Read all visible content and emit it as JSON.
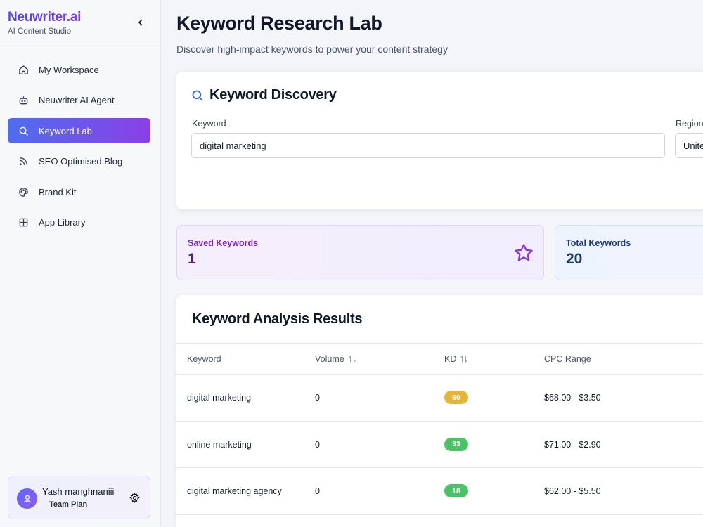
{
  "app": {
    "brand_name": "Neuwriter.ai",
    "brand_subtitle": "AI Content Studio"
  },
  "sidebar": {
    "items": [
      {
        "label": "My Workspace",
        "icon": "home-icon",
        "active": false
      },
      {
        "label": "Neuwriter AI Agent",
        "icon": "bot-icon",
        "active": false
      },
      {
        "label": "Keyword Lab",
        "icon": "search-icon",
        "active": true
      },
      {
        "label": "SEO Optimised Blog",
        "icon": "rss-icon",
        "active": false
      },
      {
        "label": "Brand Kit",
        "icon": "palette-icon",
        "active": false
      },
      {
        "label": "App Library",
        "icon": "grid-icon",
        "active": false
      }
    ],
    "user": {
      "name": "Yash manghnaniii",
      "plan": "Team Plan"
    }
  },
  "page": {
    "title": "Keyword Research Lab",
    "subtitle": "Discover high-impact keywords to power your content strategy"
  },
  "discovery": {
    "title": "Keyword Discovery",
    "keyword_label": "Keyword",
    "keyword_value": "digital marketing",
    "region_label": "Region",
    "region_value": "Unite"
  },
  "stats": {
    "saved_label": "Saved Keywords",
    "saved_value": "1",
    "total_label": "Total Keywords",
    "total_value": "20"
  },
  "results": {
    "title": "Keyword Analysis Results",
    "columns": [
      "Keyword",
      "Volume",
      "KD",
      "CPC Range"
    ],
    "rows": [
      {
        "keyword": "digital marketing",
        "volume": "0",
        "kd": "60",
        "kd_color": "#e3b53b",
        "cpc": "$68.00 - $3.50"
      },
      {
        "keyword": "online marketing",
        "volume": "0",
        "kd": "33",
        "kd_color": "#4cc266",
        "cpc": "$71.00 - $2.90"
      },
      {
        "keyword": "digital marketing agency",
        "volume": "0",
        "kd": "18",
        "kd_color": "#4cc266",
        "cpc": "$62.00 - $5.50"
      }
    ]
  },
  "colors": {
    "accent_start": "#4f6df0",
    "accent_end": "#8b3fe6",
    "saved_text": "#7e22ce",
    "total_text": "#1e3a8a"
  }
}
